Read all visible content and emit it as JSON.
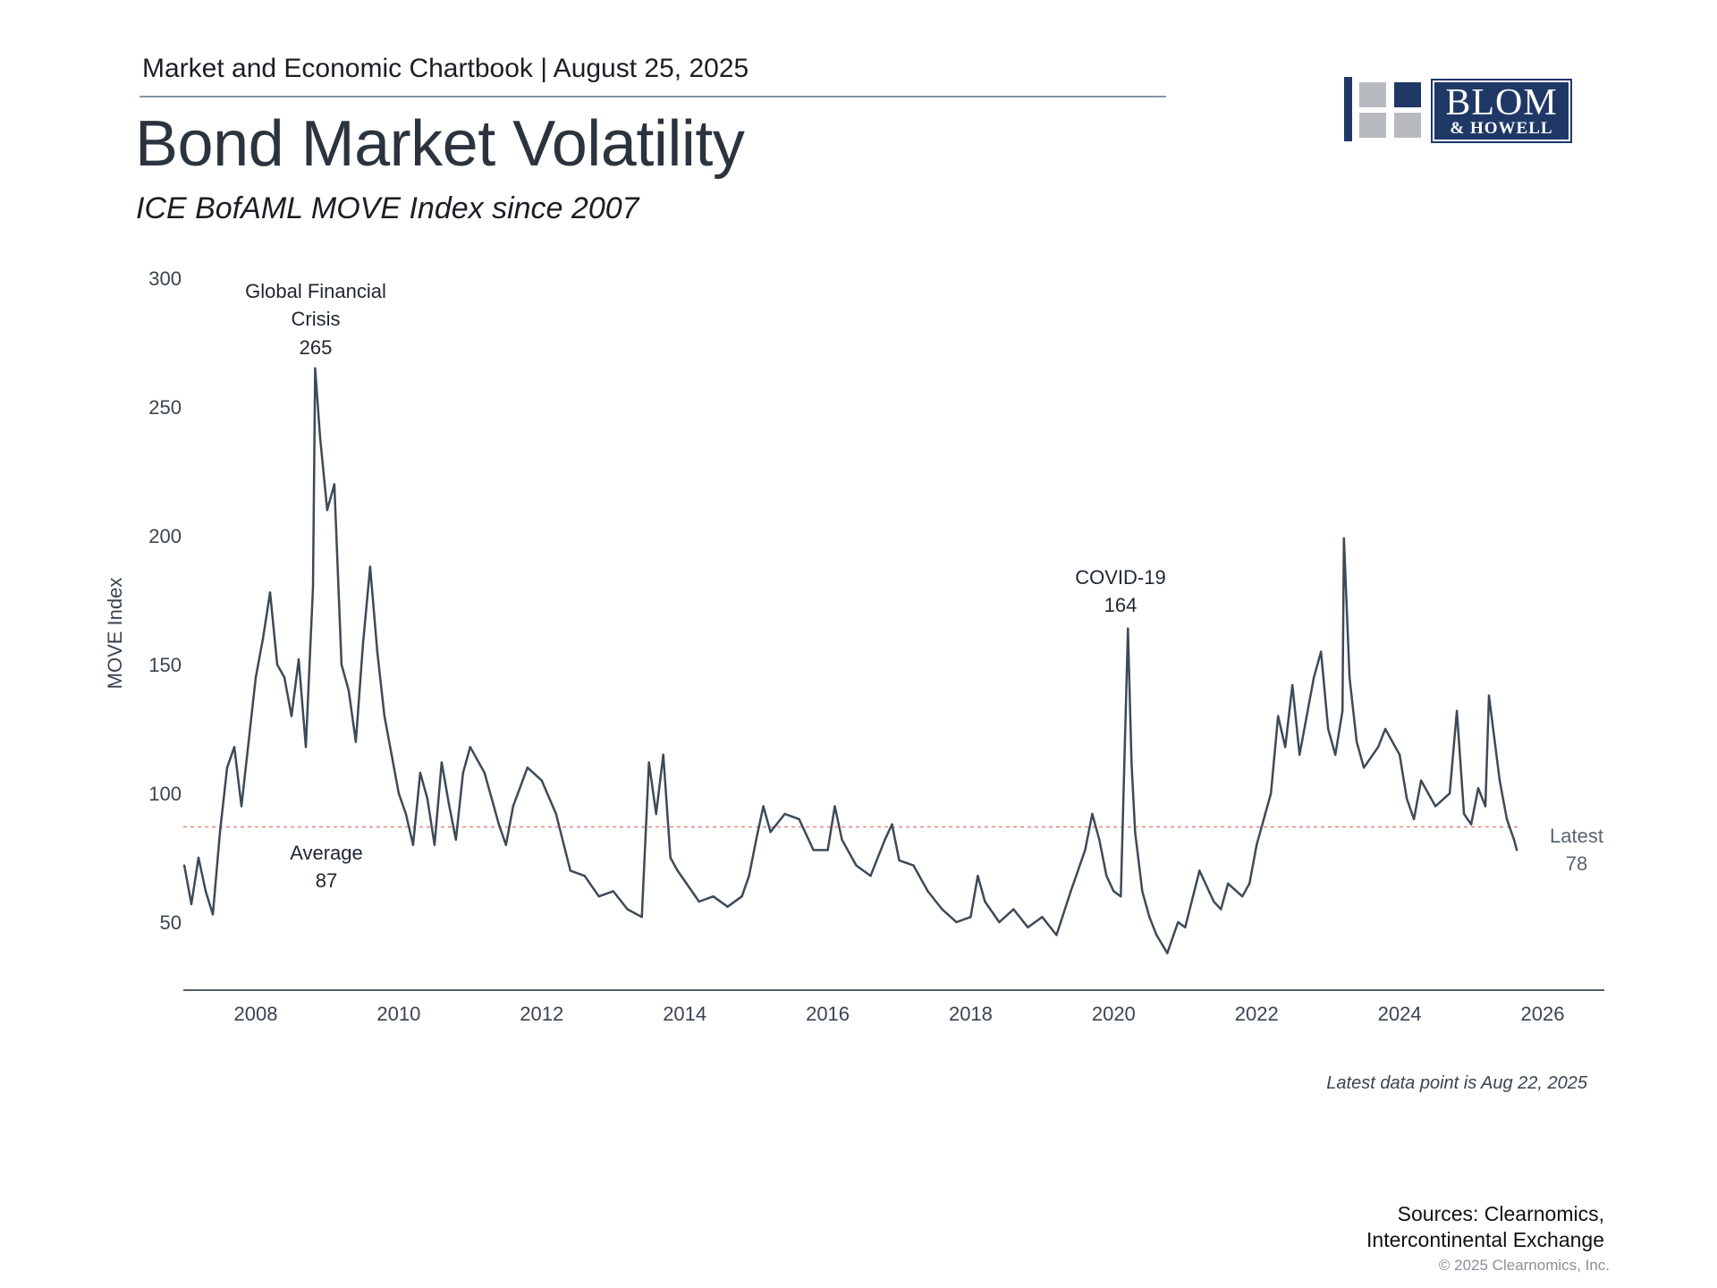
{
  "header": {
    "chartbook": "Market and Economic Chartbook | August 25, 2025",
    "title": "Bond Market Volatility",
    "subtitle": "ICE BofAML MOVE Index since 2007"
  },
  "logo": {
    "name": "BLOM",
    "sub": "& HOWELL",
    "color": "#1f3866"
  },
  "colors": {
    "line": "#3d4a57",
    "average_line": "#e0887a",
    "axis": "#555f6a"
  },
  "chart_data": {
    "type": "line",
    "title": "Bond Market Volatility",
    "subtitle": "ICE BofAML MOVE Index since 2007",
    "ylabel": "MOVE Index",
    "xlabel": "",
    "ylim": [
      25,
      300
    ],
    "xlim": [
      2007.0,
      2026.9
    ],
    "yticks": [
      50,
      100,
      150,
      200,
      250,
      300
    ],
    "xticks": [
      2008,
      2010,
      2012,
      2014,
      2016,
      2018,
      2020,
      2022,
      2024,
      2026
    ],
    "grid": false,
    "series": [
      {
        "values": [
          [
            2007.0,
            72
          ],
          [
            2007.1,
            57
          ],
          [
            2007.2,
            75
          ],
          [
            2007.3,
            62
          ],
          [
            2007.4,
            53
          ],
          [
            2007.5,
            85
          ],
          [
            2007.6,
            110
          ],
          [
            2007.7,
            118
          ],
          [
            2007.8,
            95
          ],
          [
            2007.9,
            120
          ],
          [
            2008.0,
            145
          ],
          [
            2008.1,
            160
          ],
          [
            2008.2,
            178
          ],
          [
            2008.3,
            150
          ],
          [
            2008.4,
            145
          ],
          [
            2008.5,
            130
          ],
          [
            2008.6,
            152
          ],
          [
            2008.7,
            118
          ],
          [
            2008.8,
            180
          ],
          [
            2008.83,
            265
          ],
          [
            2008.9,
            238
          ],
          [
            2009.0,
            210
          ],
          [
            2009.1,
            220
          ],
          [
            2009.2,
            150
          ],
          [
            2009.3,
            140
          ],
          [
            2009.4,
            120
          ],
          [
            2009.5,
            158
          ],
          [
            2009.6,
            188
          ],
          [
            2009.7,
            155
          ],
          [
            2009.8,
            130
          ],
          [
            2009.9,
            115
          ],
          [
            2010.0,
            100
          ],
          [
            2010.1,
            92
          ],
          [
            2010.2,
            80
          ],
          [
            2010.3,
            108
          ],
          [
            2010.4,
            98
          ],
          [
            2010.5,
            80
          ],
          [
            2010.6,
            112
          ],
          [
            2010.7,
            96
          ],
          [
            2010.8,
            82
          ],
          [
            2010.9,
            108
          ],
          [
            2011.0,
            118
          ],
          [
            2011.2,
            108
          ],
          [
            2011.4,
            88
          ],
          [
            2011.5,
            80
          ],
          [
            2011.6,
            95
          ],
          [
            2011.8,
            110
          ],
          [
            2012.0,
            105
          ],
          [
            2012.2,
            92
          ],
          [
            2012.4,
            70
          ],
          [
            2012.6,
            68
          ],
          [
            2012.8,
            60
          ],
          [
            2013.0,
            62
          ],
          [
            2013.2,
            55
          ],
          [
            2013.4,
            52
          ],
          [
            2013.5,
            112
          ],
          [
            2013.6,
            92
          ],
          [
            2013.7,
            115
          ],
          [
            2013.8,
            75
          ],
          [
            2013.9,
            70
          ],
          [
            2014.0,
            66
          ],
          [
            2014.2,
            58
          ],
          [
            2014.4,
            60
          ],
          [
            2014.6,
            56
          ],
          [
            2014.8,
            60
          ],
          [
            2014.9,
            68
          ],
          [
            2015.0,
            82
          ],
          [
            2015.1,
            95
          ],
          [
            2015.2,
            85
          ],
          [
            2015.4,
            92
          ],
          [
            2015.6,
            90
          ],
          [
            2015.8,
            78
          ],
          [
            2016.0,
            78
          ],
          [
            2016.1,
            95
          ],
          [
            2016.2,
            82
          ],
          [
            2016.4,
            72
          ],
          [
            2016.6,
            68
          ],
          [
            2016.8,
            82
          ],
          [
            2016.9,
            88
          ],
          [
            2017.0,
            74
          ],
          [
            2017.2,
            72
          ],
          [
            2017.4,
            62
          ],
          [
            2017.6,
            55
          ],
          [
            2017.8,
            50
          ],
          [
            2018.0,
            52
          ],
          [
            2018.1,
            68
          ],
          [
            2018.2,
            58
          ],
          [
            2018.4,
            50
          ],
          [
            2018.6,
            55
          ],
          [
            2018.8,
            48
          ],
          [
            2019.0,
            52
          ],
          [
            2019.2,
            45
          ],
          [
            2019.4,
            62
          ],
          [
            2019.6,
            78
          ],
          [
            2019.7,
            92
          ],
          [
            2019.8,
            82
          ],
          [
            2019.9,
            68
          ],
          [
            2020.0,
            62
          ],
          [
            2020.1,
            60
          ],
          [
            2020.2,
            164
          ],
          [
            2020.25,
            112
          ],
          [
            2020.3,
            85
          ],
          [
            2020.4,
            62
          ],
          [
            2020.5,
            52
          ],
          [
            2020.6,
            45
          ],
          [
            2020.75,
            38
          ],
          [
            2020.9,
            50
          ],
          [
            2021.0,
            48
          ],
          [
            2021.2,
            70
          ],
          [
            2021.4,
            58
          ],
          [
            2021.5,
            55
          ],
          [
            2021.6,
            65
          ],
          [
            2021.8,
            60
          ],
          [
            2021.9,
            65
          ],
          [
            2022.0,
            80
          ],
          [
            2022.1,
            90
          ],
          [
            2022.2,
            100
          ],
          [
            2022.3,
            130
          ],
          [
            2022.4,
            118
          ],
          [
            2022.5,
            142
          ],
          [
            2022.6,
            115
          ],
          [
            2022.8,
            145
          ],
          [
            2022.9,
            155
          ],
          [
            2023.0,
            125
          ],
          [
            2023.1,
            115
          ],
          [
            2023.2,
            132
          ],
          [
            2023.22,
            199
          ],
          [
            2023.3,
            145
          ],
          [
            2023.4,
            120
          ],
          [
            2023.5,
            110
          ],
          [
            2023.7,
            118
          ],
          [
            2023.8,
            125
          ],
          [
            2024.0,
            115
          ],
          [
            2024.1,
            98
          ],
          [
            2024.2,
            90
          ],
          [
            2024.3,
            105
          ],
          [
            2024.5,
            95
          ],
          [
            2024.7,
            100
          ],
          [
            2024.8,
            132
          ],
          [
            2024.9,
            92
          ],
          [
            2025.0,
            88
          ],
          [
            2025.1,
            102
          ],
          [
            2025.2,
            95
          ],
          [
            2025.25,
            138
          ],
          [
            2025.4,
            105
          ],
          [
            2025.5,
            90
          ],
          [
            2025.6,
            82
          ],
          [
            2025.64,
            78
          ]
        ]
      }
    ],
    "average": {
      "value": 87,
      "label_line1": "Average",
      "label_line2": "87"
    },
    "annotations": [
      {
        "id": "gfc",
        "line1": "Global Financial",
        "line2": "Crisis",
        "line3": "265",
        "x": 2008.83,
        "y": 265
      },
      {
        "id": "covid",
        "line1": "COVID-19",
        "line2": "164",
        "x": 2020.2,
        "y": 164
      },
      {
        "id": "latest",
        "line1": "Latest",
        "line2": "78",
        "x": 2025.64,
        "y": 78
      }
    ],
    "note": "Latest data point is Aug 22, 2025"
  },
  "footer": {
    "sources_line1": "Sources: Clearnomics,",
    "sources_line2": "Intercontinental Exchange",
    "copyright": "© 2025 Clearnomics, Inc."
  }
}
